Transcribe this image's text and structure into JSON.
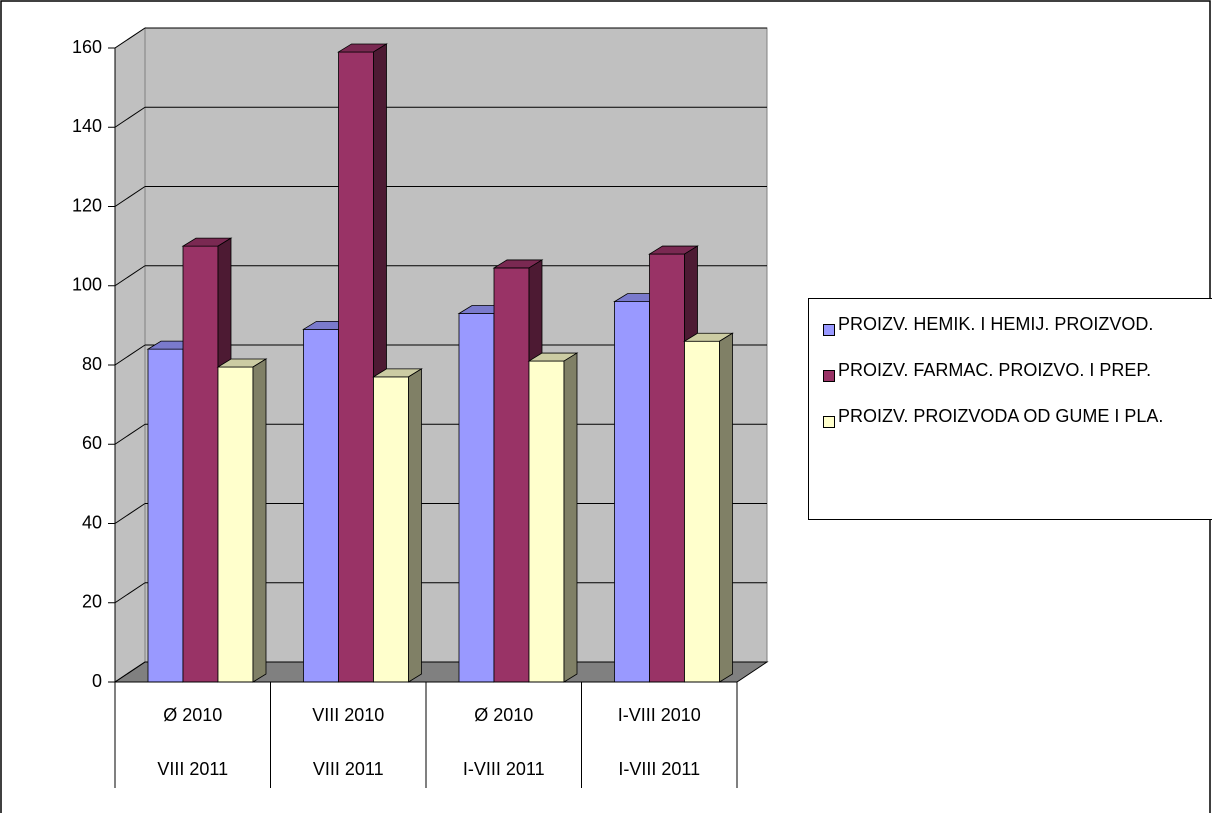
{
  "chart_data": {
    "type": "bar3d",
    "categories": [
      [
        "Ø 2010",
        "VIII 2011"
      ],
      [
        "VIII 2010",
        "VIII 2011"
      ],
      [
        "Ø 2010",
        "I-VIII 2011"
      ],
      [
        "I-VIII 2010",
        "I-VIII 2011"
      ]
    ],
    "series": [
      {
        "name": "PROIZV. HEMIK. I HEMIJ. PROIZVOD.",
        "color": "#9999ff",
        "values": [
          84,
          89,
          93,
          96
        ]
      },
      {
        "name": "PROIZV. FARMAC. PROIZVO. I PREP.",
        "color": "#993366",
        "values": [
          110,
          159,
          104.5,
          108
        ]
      },
      {
        "name": "PROIZV. PROIZVODA OD GUME I PLA.",
        "color": "#ffffcc",
        "values": [
          79.5,
          77,
          81,
          86
        ]
      }
    ],
    "ylim": [
      0,
      160
    ],
    "yticks": [
      0,
      20,
      40,
      60,
      80,
      100,
      120,
      140,
      160
    ],
    "grid": true,
    "legend": "right"
  }
}
